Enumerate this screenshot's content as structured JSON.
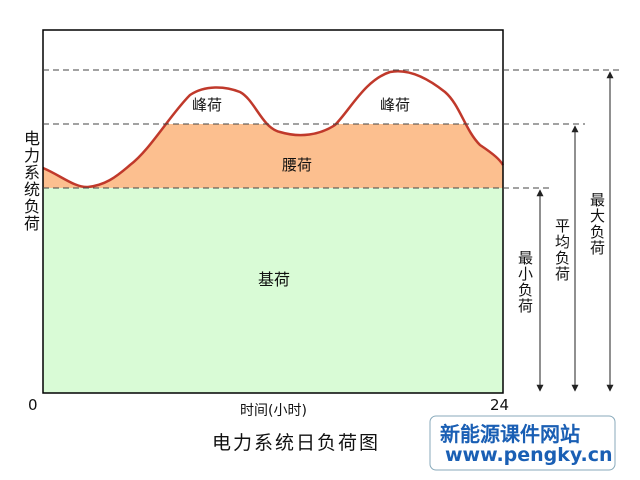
{
  "diagram": {
    "title": "电力系统日负荷图",
    "y_axis_label": "电力系统负荷",
    "x_axis_label": "时间(小时)",
    "x_start": "0",
    "x_end": "24",
    "regions": {
      "peak_left": "峰荷",
      "peak_right": "峰荷",
      "middle": "腰荷",
      "base": "基荷"
    },
    "levels": {
      "min": "最小负荷",
      "avg": "平均负荷",
      "max": "最大负荷"
    },
    "watermark": {
      "name": "新能源课件网站",
      "url": "www.pengky.cn"
    }
  }
}
